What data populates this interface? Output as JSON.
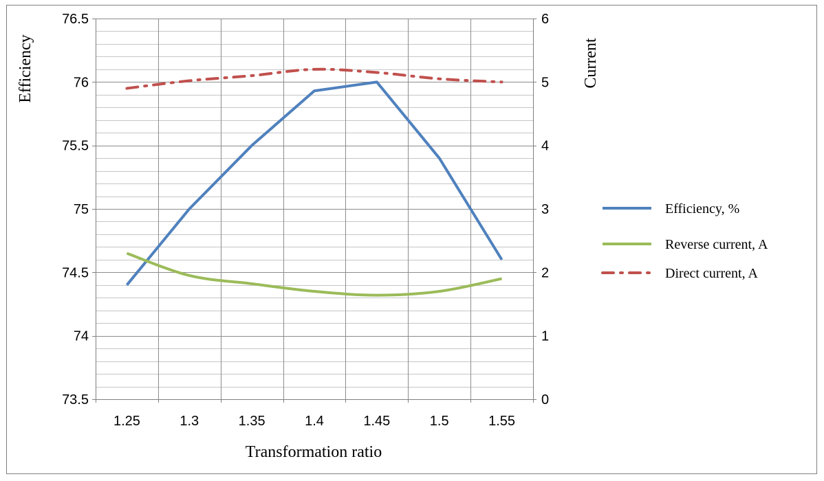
{
  "chart_data": {
    "type": "line",
    "title": "",
    "xlabel": "Transformation ratio",
    "ylabel_left": "Efficiency",
    "ylabel_right": "Current",
    "x_categories": [
      "1.25",
      "1.3",
      "1.35",
      "1.4",
      "1.45",
      "1.5",
      "1.55"
    ],
    "y_left": {
      "min": 73.5,
      "max": 76.5,
      "major_step": 0.5,
      "minor_step": 0.1,
      "tick_labels": [
        "73.5",
        "74",
        "74.5",
        "75",
        "75.5",
        "76",
        "76.5"
      ]
    },
    "y_right": {
      "min": 0,
      "max": 6,
      "major_step": 1,
      "tick_labels": [
        "0",
        "1",
        "2",
        "3",
        "4",
        "5",
        "6"
      ]
    },
    "grid": true,
    "legend_position": "right",
    "series": [
      {
        "name": "Efficiency, %",
        "axis": "left",
        "color": "#4f81bd",
        "style": "solid",
        "values": [
          74.4,
          75.0,
          75.5,
          75.93,
          76.0,
          75.4,
          74.6
        ]
      },
      {
        "name": "Reverse current, A",
        "axis": "right",
        "color": "#9bbb59",
        "style": "solid",
        "values": [
          2.3,
          1.95,
          1.82,
          1.7,
          1.64,
          1.7,
          1.9
        ]
      },
      {
        "name": "Direct current, A",
        "axis": "right",
        "color": "#c0504d",
        "style": "dash-dot",
        "values": [
          4.9,
          5.02,
          5.1,
          5.2,
          5.15,
          5.05,
          5.0
        ]
      }
    ]
  }
}
